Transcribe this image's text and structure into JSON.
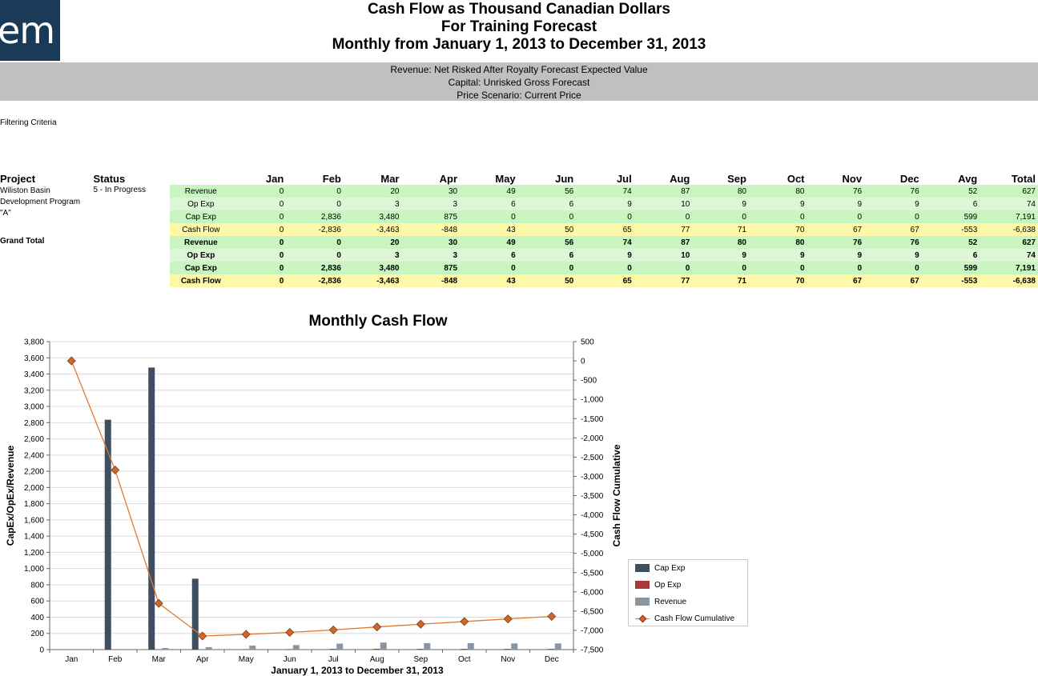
{
  "logo_text": "em",
  "titles": [
    "Cash Flow as Thousand Canadian Dollars",
    "For Training Forecast",
    "Monthly from January 1, 2013 to December 31, 2013"
  ],
  "subtitles": [
    "Revenue: Net Risked After Royalty Forecast Expected Value",
    "Capital: Unrisked Gross Forecast",
    "Price Scenario: Current Price"
  ],
  "filter_label": "Filtering Criteria",
  "table": {
    "headers": {
      "project": "Project",
      "status": "Status",
      "columns": [
        "Jan",
        "Feb",
        "Mar",
        "Apr",
        "May",
        "Jun",
        "Jul",
        "Aug",
        "Sep",
        "Oct",
        "Nov",
        "Dec",
        "Avg",
        "Total"
      ]
    },
    "project": {
      "name_lines": [
        "Wiliston Basin",
        "Development Program",
        "\"A\""
      ],
      "status": "5 - In Progress",
      "rows": [
        {
          "label": "Revenue",
          "values": [
            "0",
            "0",
            "20",
            "30",
            "49",
            "56",
            "74",
            "87",
            "80",
            "80",
            "76",
            "76",
            "52",
            "627"
          ]
        },
        {
          "label": "Op Exp",
          "values": [
            "0",
            "0",
            "3",
            "3",
            "6",
            "6",
            "9",
            "10",
            "9",
            "9",
            "9",
            "9",
            "6",
            "74"
          ]
        },
        {
          "label": "Cap Exp",
          "values": [
            "0",
            "2,836",
            "3,480",
            "875",
            "0",
            "0",
            "0",
            "0",
            "0",
            "0",
            "0",
            "0",
            "599",
            "7,191"
          ]
        },
        {
          "label": "Cash Flow",
          "values": [
            "0",
            "-2,836",
            "-3,463",
            "-848",
            "43",
            "50",
            "65",
            "77",
            "71",
            "70",
            "67",
            "67",
            "-553",
            "-6,638"
          ]
        }
      ]
    },
    "grand_total": {
      "label": "Grand Total",
      "rows": [
        {
          "label": "Revenue",
          "values": [
            "0",
            "0",
            "20",
            "30",
            "49",
            "56",
            "74",
            "87",
            "80",
            "80",
            "76",
            "76",
            "52",
            "627"
          ]
        },
        {
          "label": "Op Exp",
          "values": [
            "0",
            "0",
            "3",
            "3",
            "6",
            "6",
            "9",
            "10",
            "9",
            "9",
            "9",
            "9",
            "6",
            "74"
          ]
        },
        {
          "label": "Cap Exp",
          "values": [
            "0",
            "2,836",
            "3,480",
            "875",
            "0",
            "0",
            "0",
            "0",
            "0",
            "0",
            "0",
            "0",
            "599",
            "7,191"
          ]
        },
        {
          "label": "Cash Flow",
          "values": [
            "0",
            "-2,836",
            "-3,463",
            "-848",
            "43",
            "50",
            "65",
            "77",
            "71",
            "70",
            "67",
            "67",
            "-553",
            "-6,638"
          ]
        }
      ]
    }
  },
  "chart_data": {
    "type": "bar",
    "title": "Monthly Cash Flow",
    "xlabel": "January 1, 2013 to December 31, 2013",
    "ylabel": "CapEx/OpEx/Revenue",
    "y2label": "Cash Flow Cumulative",
    "categories": [
      "Jan",
      "Feb",
      "Mar",
      "Apr",
      "May",
      "Jun",
      "Jul",
      "Aug",
      "Sep",
      "Oct",
      "Nov",
      "Dec"
    ],
    "ylim": [
      0,
      3800
    ],
    "y_ticks": [
      0,
      200,
      400,
      600,
      800,
      1000,
      1200,
      1400,
      1600,
      1800,
      2000,
      2200,
      2400,
      2600,
      2800,
      3000,
      3200,
      3400,
      3600,
      3800
    ],
    "y_tick_labels": [
      "0",
      "200",
      "400",
      "600",
      "800",
      "1,000",
      "1,200",
      "1,400",
      "1,600",
      "1,800",
      "2,000",
      "2,200",
      "2,400",
      "2,600",
      "2,800",
      "3,000",
      "3,200",
      "3,400",
      "3,600",
      "3,800"
    ],
    "y2lim": [
      -7500,
      500
    ],
    "y2_ticks": [
      500,
      0,
      -500,
      -1000,
      -1500,
      -2000,
      -2500,
      -3000,
      -3500,
      -4000,
      -4500,
      -5000,
      -5500,
      -6000,
      -6500,
      -7000,
      -7500
    ],
    "y2_tick_labels": [
      "500",
      "0",
      "-500",
      "-1,000",
      "-1,500",
      "-2,000",
      "-2,500",
      "-3,000",
      "-3,500",
      "-4,000",
      "-4,500",
      "-5,000",
      "-5,500",
      "-6,000",
      "-6,500",
      "-7,000",
      "-7,500"
    ],
    "series": [
      {
        "name": "Cap Exp",
        "type": "bar",
        "color": "#3d4f60",
        "values": [
          0,
          2836,
          3480,
          875,
          0,
          0,
          0,
          0,
          0,
          0,
          0,
          0
        ]
      },
      {
        "name": "Op Exp",
        "type": "bar",
        "color": "#a8383b",
        "values": [
          0,
          0,
          3,
          3,
          6,
          6,
          9,
          10,
          9,
          9,
          9,
          9
        ]
      },
      {
        "name": "Revenue",
        "type": "bar",
        "color": "#8896a4",
        "values": [
          0,
          0,
          20,
          30,
          49,
          56,
          74,
          87,
          80,
          80,
          76,
          76
        ]
      },
      {
        "name": "Cash Flow Cumulative",
        "type": "line",
        "axis": "y2",
        "color": "#e07a30",
        "marker_color": "#d0672a",
        "values": [
          0,
          -2836,
          -6299,
          -7147,
          -7104,
          -7054,
          -6989,
          -6912,
          -6841,
          -6771,
          -6704,
          -6637
        ]
      }
    ],
    "legend_position": "right"
  }
}
